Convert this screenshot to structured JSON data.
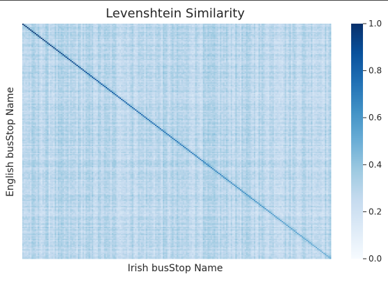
{
  "chart_data": {
    "type": "heatmap",
    "title": "Levenshtein Similarity",
    "xlabel": "Irish busStop Name",
    "ylabel": "English busStop Name",
    "x_tick_labels": [],
    "y_tick_labels": [],
    "value_range": [
      0.0,
      1.0
    ],
    "colormap": "Blues",
    "colormap_colors": [
      "#f7fbff",
      "#deebf7",
      "#c6dbef",
      "#9ecae1",
      "#6baed6",
      "#4292c6",
      "#2171b5",
      "#08519c",
      "#08306b"
    ],
    "colorbar": {
      "ticks": [
        0.0,
        0.2,
        0.4,
        0.6,
        0.8,
        1.0
      ],
      "tick_labels": [
        "0.0",
        "0.2",
        "0.4",
        "0.6",
        "0.8",
        "1.0"
      ]
    },
    "matrix": {
      "rows": 200,
      "cols": 200,
      "diagonal_value": 1.0,
      "typical_off_diagonal_range": [
        0.05,
        0.35
      ],
      "note_values": "dense similarity matrix; diagonal near 1.0 decreasing along the main diagonal, off-diagonal mostly 0.1–0.3"
    },
    "grid": false,
    "legend": "colorbar-right"
  }
}
